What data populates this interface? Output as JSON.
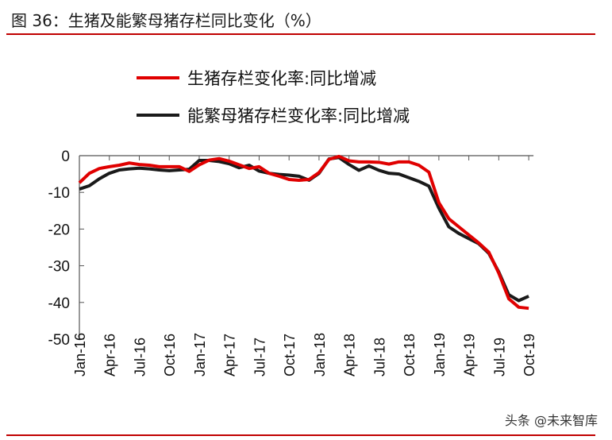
{
  "title": "图 36：生猪及能繁母猪存栏同比变化（%）",
  "watermark": "头条 @未来智库",
  "colors": {
    "accent": "#c00000",
    "series_red": "#e00000",
    "series_black": "#1a1a1a"
  },
  "chart_data": {
    "type": "line",
    "title": "",
    "xlabel": "",
    "ylabel": "",
    "ylim": [
      -50,
      0
    ],
    "yticks": [
      "0",
      "-10",
      "-20",
      "-30",
      "-40",
      "-50"
    ],
    "grid": false,
    "legend": "top",
    "x": [
      "Jan-16",
      "Feb-16",
      "Mar-16",
      "Apr-16",
      "May-16",
      "Jun-16",
      "Jul-16",
      "Aug-16",
      "Sep-16",
      "Oct-16",
      "Nov-16",
      "Dec-16",
      "Jan-17",
      "Feb-17",
      "Mar-17",
      "Apr-17",
      "May-17",
      "Jun-17",
      "Jul-17",
      "Aug-17",
      "Sep-17",
      "Oct-17",
      "Nov-17",
      "Dec-17",
      "Jan-18",
      "Feb-18",
      "Mar-18",
      "Apr-18",
      "May-18",
      "Jun-18",
      "Jul-18",
      "Aug-18",
      "Sep-18",
      "Oct-18",
      "Nov-18",
      "Dec-18",
      "Jan-19",
      "Feb-19",
      "Mar-19",
      "Apr-19",
      "May-19",
      "Jun-19",
      "Jul-19",
      "Aug-19",
      "Sep-19",
      "Oct-19"
    ],
    "xticks": [
      "Jan-16",
      "Apr-16",
      "Jul-16",
      "Oct-16",
      "Jan-17",
      "Apr-17",
      "Jul-17",
      "Oct-17",
      "Jan-18",
      "Apr-18",
      "Jul-18",
      "Oct-18",
      "Jan-19",
      "Apr-19",
      "Jul-19",
      "Oct-19"
    ],
    "series": [
      {
        "name": "生猪存栏变化率:同比增减",
        "color": "#e00000",
        "values": [
          -7.4,
          -4.8,
          -3.5,
          -3.0,
          -2.6,
          -2.0,
          -2.4,
          -2.6,
          -3.0,
          -3.0,
          -3.0,
          -4.3,
          -2.5,
          -1.2,
          -0.8,
          -1.5,
          -2.5,
          -3.5,
          -3.0,
          -4.8,
          -5.6,
          -6.5,
          -6.7,
          -6.5,
          -4.6,
          -1.0,
          -0.2,
          -1.4,
          -1.7,
          -1.7,
          -1.8,
          -2.3,
          -1.7,
          -1.7,
          -2.6,
          -4.5,
          -12.8,
          -17.2,
          -19.4,
          -21.6,
          -23.8,
          -26.3,
          -32.0,
          -39.0,
          -41.3,
          -41.6
        ]
      },
      {
        "name": "能繁母猪存栏变化率:同比增减",
        "color": "#1a1a1a",
        "values": [
          -9.1,
          -8.2,
          -6.3,
          -4.8,
          -3.9,
          -3.6,
          -3.4,
          -3.6,
          -3.9,
          -4.1,
          -3.9,
          -3.7,
          -1.3,
          -1.3,
          -1.6,
          -2.2,
          -3.3,
          -2.6,
          -4.2,
          -4.8,
          -5.1,
          -5.3,
          -5.6,
          -6.7,
          -4.8,
          -0.9,
          -0.5,
          -2.4,
          -4.0,
          -2.8,
          -4.0,
          -4.8,
          -5.0,
          -6.0,
          -7.0,
          -8.3,
          -14.3,
          -19.4,
          -21.2,
          -22.6,
          -24.0,
          -26.6,
          -31.7,
          -37.9,
          -39.5,
          -38.3
        ]
      }
    ]
  }
}
